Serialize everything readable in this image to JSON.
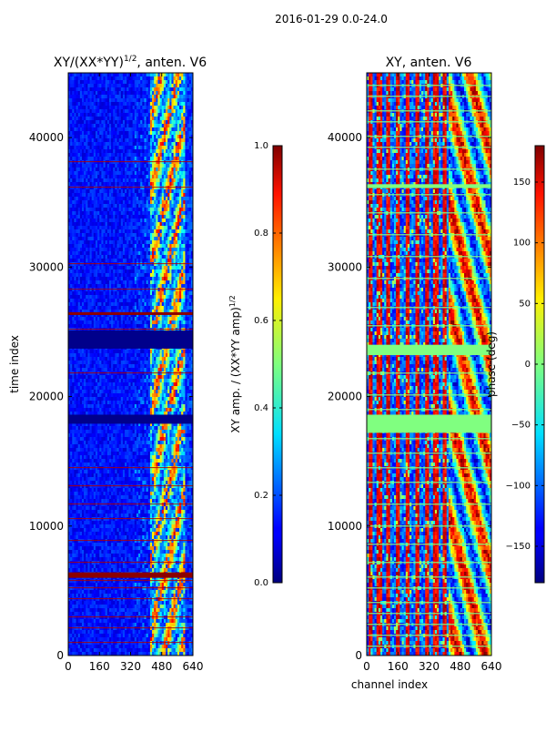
{
  "figure_title": "2016-01-29 0.0-24.0",
  "chart_data": [
    {
      "type": "heatmap",
      "title": "XY/(XX*YY)^1/2, anten. V6",
      "title_main": "XY/(XX*YY)",
      "title_sup": "1/2",
      "title_tail": ", anten. V6",
      "xlabel": "",
      "ylabel": "time index",
      "xlim": [
        0,
        640
      ],
      "ylim": [
        0,
        45000
      ],
      "xticks": [
        0,
        160,
        320,
        480,
        640
      ],
      "yticks": [
        0,
        10000,
        20000,
        30000,
        40000
      ],
      "colorbar": {
        "label": "XY amp. / (XX*YY amp)^1/2",
        "label_main": "XY amp. / (XX*YY amp)",
        "label_sup": "1/2",
        "ticks": [
          "0.0",
          "0.2",
          "0.4",
          "0.6",
          "0.8",
          "1.0"
        ],
        "tick_values": [
          0.0,
          0.2,
          0.4,
          0.6,
          0.8,
          1.0
        ],
        "range": [
          0.0,
          1.0
        ]
      }
    },
    {
      "type": "heatmap",
      "title": "XY, anten. V6",
      "xlabel": "channel index",
      "ylabel": "",
      "xlim": [
        0,
        640
      ],
      "ylim": [
        0,
        45000
      ],
      "xticks": [
        0,
        160,
        320,
        480,
        640
      ],
      "yticks": [
        0,
        10000,
        20000,
        30000,
        40000
      ],
      "colorbar": {
        "label": "phase (deg)",
        "ticks": [
          "−150",
          "−100",
          "−50",
          "0",
          "50",
          "100",
          "150"
        ],
        "tick_values": [
          -150,
          -100,
          -50,
          0,
          50,
          100,
          150
        ],
        "range": [
          -180,
          180
        ]
      }
    }
  ]
}
